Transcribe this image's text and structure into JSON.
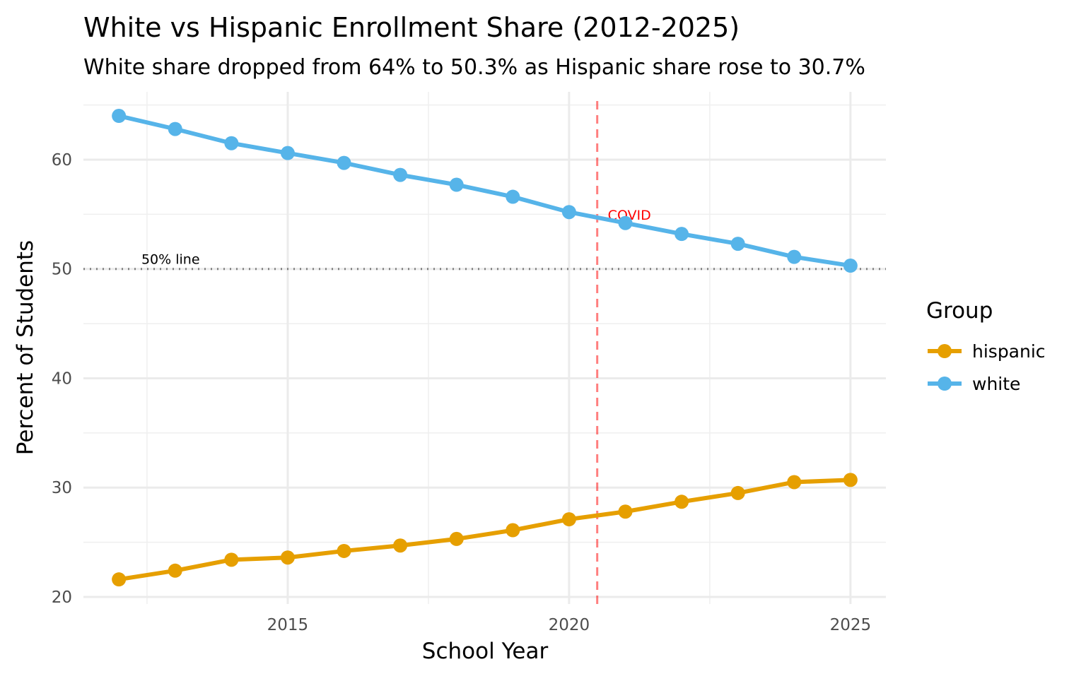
{
  "chart_data": {
    "type": "line",
    "title": "White vs Hispanic Enrollment Share (2012-2025)",
    "subtitle": "White share dropped from 64% to 50.3% as Hispanic share rose to 30.7%",
    "xlabel": "School Year",
    "ylabel": "Percent of Students",
    "x": [
      2012,
      2013,
      2014,
      2015,
      2016,
      2017,
      2018,
      2019,
      2020,
      2021,
      2022,
      2023,
      2024,
      2025
    ],
    "series": [
      {
        "name": "hispanic",
        "color": "#E69F00",
        "values": [
          21.6,
          22.4,
          23.4,
          23.6,
          24.2,
          24.7,
          25.3,
          26.1,
          27.1,
          27.8,
          28.7,
          29.5,
          30.5,
          30.7
        ]
      },
      {
        "name": "white",
        "color": "#56B4E9",
        "values": [
          64.0,
          62.8,
          61.5,
          60.6,
          59.7,
          58.6,
          57.7,
          56.6,
          55.2,
          54.2,
          53.2,
          52.3,
          51.1,
          50.3
        ]
      }
    ],
    "xlim": [
      2011.37,
      2025.63
    ],
    "ylim": [
      19.35,
      66.2
    ],
    "xticks": [
      "2015",
      "2020",
      "2025"
    ],
    "yticks": [
      "20",
      "30",
      "40",
      "50",
      "60"
    ],
    "grid": true,
    "legend": {
      "title": "Group",
      "position": "right"
    },
    "annotations": {
      "hline": {
        "y": 50,
        "label": "50% line",
        "style": "dotted",
        "color": "#808080"
      },
      "vline": {
        "x": 2020.5,
        "label": "COVID",
        "style": "dashed",
        "color": "#FF0000"
      }
    }
  }
}
